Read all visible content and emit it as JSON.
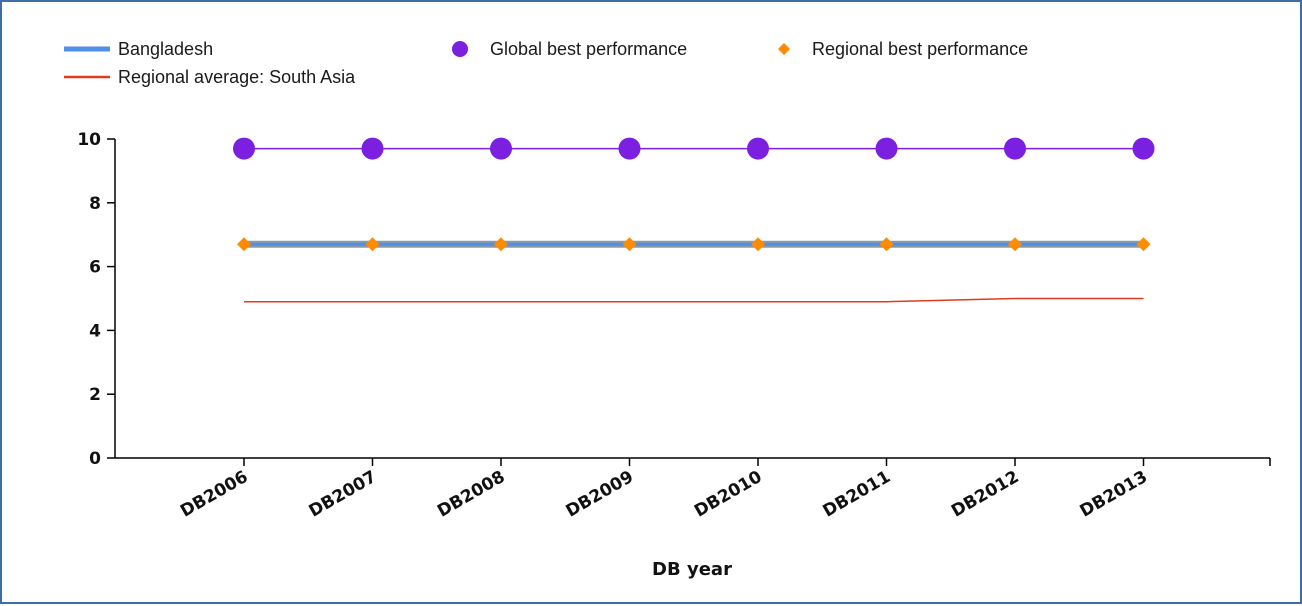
{
  "chart_data": {
    "type": "line",
    "title": "",
    "xlabel": "DB year",
    "ylabel": "",
    "categories": [
      "DB2006",
      "DB2007",
      "DB2008",
      "DB2009",
      "DB2010",
      "DB2011",
      "DB2012",
      "DB2013"
    ],
    "ylim": [
      0,
      10
    ],
    "yticks": [
      0,
      2,
      4,
      6,
      8,
      10
    ],
    "grid": false,
    "legend_position": "top-left",
    "series": [
      {
        "name": "Bangladesh",
        "style": "line",
        "color": "#4f8fe6",
        "values": [
          6.7,
          6.7,
          6.7,
          6.7,
          6.7,
          6.7,
          6.7,
          6.7
        ]
      },
      {
        "name": "Regional average: South Asia",
        "style": "line",
        "color": "#e23b1c",
        "values": [
          4.9,
          4.9,
          4.9,
          4.9,
          4.9,
          4.9,
          5.0,
          5.0
        ]
      },
      {
        "name": "Global best performance",
        "style": "line-markers-circle",
        "color": "#7b1fe0",
        "values": [
          9.7,
          9.7,
          9.7,
          9.7,
          9.7,
          9.7,
          9.7,
          9.7
        ]
      },
      {
        "name": "Regional best performance",
        "style": "line-markers-diamond",
        "color": "#ff8c00",
        "values": [
          6.7,
          6.7,
          6.7,
          6.7,
          6.7,
          6.7,
          6.7,
          6.7
        ]
      }
    ]
  }
}
